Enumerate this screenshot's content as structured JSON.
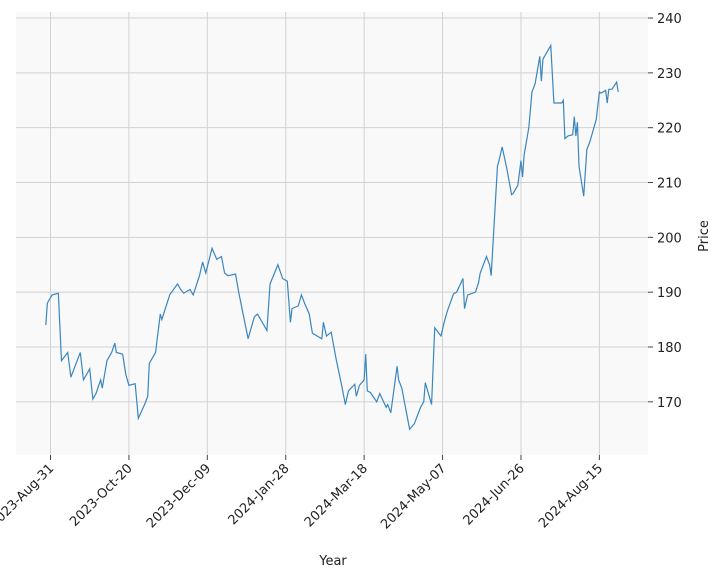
{
  "chart_data": {
    "type": "line",
    "xlabel": "Year",
    "ylabel": "Price",
    "x": [
      "2023-08-28",
      "2023-08-29",
      "2023-09-01",
      "2023-09-05",
      "2023-09-07",
      "2023-09-11",
      "2023-09-13",
      "2023-09-15",
      "2023-09-19",
      "2023-09-21",
      "2023-09-25",
      "2023-09-27",
      "2023-09-29",
      "2023-10-02",
      "2023-10-03",
      "2023-10-06",
      "2023-10-09",
      "2023-10-11",
      "2023-10-12",
      "2023-10-16",
      "2023-10-18",
      "2023-10-20",
      "2023-10-24",
      "2023-10-26",
      "2023-10-30",
      "2023-11-01",
      "2023-11-02",
      "2023-11-06",
      "2023-11-09",
      "2023-11-10",
      "2023-11-15",
      "2023-11-20",
      "2023-11-22",
      "2023-11-24",
      "2023-11-28",
      "2023-11-30",
      "2023-12-04",
      "2023-12-06",
      "2023-12-08",
      "2023-12-12",
      "2023-12-15",
      "2023-12-18",
      "2023-12-20",
      "2023-12-22",
      "2023-12-27",
      "2023-12-29",
      "2024-01-04",
      "2024-01-08",
      "2024-01-10",
      "2024-01-12",
      "2024-01-16",
      "2024-01-18",
      "2024-01-23",
      "2024-01-26",
      "2024-01-29",
      "2024-01-31",
      "2024-02-01",
      "2024-02-05",
      "2024-02-07",
      "2024-02-09",
      "2024-02-12",
      "2024-02-14",
      "2024-02-20",
      "2024-02-21",
      "2024-02-23",
      "2024-02-26",
      "2024-02-29",
      "2024-03-04",
      "2024-03-06",
      "2024-03-08",
      "2024-03-12",
      "2024-03-13",
      "2024-03-15",
      "2024-03-18",
      "2024-03-19",
      "2024-03-20",
      "2024-03-22",
      "2024-03-26",
      "2024-03-28",
      "2024-04-01",
      "2024-04-02",
      "2024-04-04",
      "2024-04-08",
      "2024-04-09",
      "2024-04-11",
      "2024-04-16",
      "2024-04-19",
      "2024-04-23",
      "2024-04-25",
      "2024-04-26",
      "2024-04-30",
      "2024-05-02",
      "2024-05-06",
      "2024-05-08",
      "2024-05-10",
      "2024-05-14",
      "2024-05-16",
      "2024-05-20",
      "2024-05-21",
      "2024-05-23",
      "2024-05-28",
      "2024-05-30",
      "2024-05-31",
      "2024-06-04",
      "2024-06-06",
      "2024-06-07",
      "2024-06-11",
      "2024-06-12",
      "2024-06-14",
      "2024-06-17",
      "2024-06-20",
      "2024-06-21",
      "2024-06-24",
      "2024-06-26",
      "2024-06-27",
      "2024-06-28",
      "2024-07-01",
      "2024-07-03",
      "2024-07-05",
      "2024-07-08",
      "2024-07-09",
      "2024-07-10",
      "2024-07-15",
      "2024-07-17",
      "2024-07-22",
      "2024-07-23",
      "2024-07-24",
      "2024-07-26",
      "2024-07-29",
      "2024-07-30",
      "2024-07-31",
      "2024-08-01",
      "2024-08-02",
      "2024-08-05",
      "2024-08-07",
      "2024-08-09",
      "2024-08-13",
      "2024-08-15",
      "2024-08-16",
      "2024-08-19",
      "2024-08-20",
      "2024-08-21",
      "2024-08-23",
      "2024-08-26",
      "2024-08-27"
    ],
    "values": [
      184,
      188,
      189.5,
      189.8,
      177.5,
      179,
      174.5,
      176,
      179,
      174,
      176,
      170.5,
      171.5,
      174,
      172.5,
      177.5,
      179,
      180.7,
      179,
      178.7,
      175,
      173,
      173.3,
      167,
      169.5,
      171,
      177,
      179,
      186,
      185,
      189.5,
      191.5,
      190.5,
      189.8,
      190.5,
      189.5,
      193,
      195.5,
      193.5,
      198,
      196,
      196.5,
      193.5,
      193,
      193.3,
      190,
      181.5,
      185.5,
      186,
      185,
      183,
      191.5,
      195,
      192.5,
      192,
      184.5,
      187,
      187.5,
      189.5,
      188,
      186,
      182.5,
      181.5,
      184.5,
      182,
      182.7,
      178,
      172.5,
      169.5,
      172,
      173.2,
      171,
      173,
      174,
      178.7,
      172,
      171.7,
      170,
      171.5,
      169,
      169.5,
      168,
      176.5,
      174,
      172.5,
      165,
      166,
      169,
      170,
      173.5,
      169.5,
      183.5,
      182,
      184.5,
      186.5,
      189.7,
      190,
      192.5,
      187,
      189.5,
      190,
      191.8,
      193.5,
      196.5,
      195,
      193,
      213,
      214,
      216.5,
      212.5,
      207.8,
      208,
      209.5,
      214,
      211,
      215,
      220,
      226.5,
      228,
      233,
      228.5,
      232.5,
      235,
      224.5,
      224.5,
      225,
      218,
      218.5,
      218.7,
      222,
      218.5,
      221,
      213,
      207.5,
      216,
      217.5,
      221.5,
      226.5,
      226.3,
      226.8,
      224.5,
      227,
      227,
      228.3,
      226.5
    ],
    "color": "#3a86bf",
    "xlim": [
      "2023-08-09",
      "2024-09-15"
    ],
    "xticks": [
      {
        "value": "2023-08-31",
        "label": "2023-Aug-31"
      },
      {
        "value": "2023-10-20",
        "label": "2023-Oct-20"
      },
      {
        "value": "2023-12-09",
        "label": "2023-Dec-09"
      },
      {
        "value": "2024-01-28",
        "label": "2024-Jan-28"
      },
      {
        "value": "2024-03-18",
        "label": "2024-Mar-18"
      },
      {
        "value": "2024-05-07",
        "label": "2024-May-07"
      },
      {
        "value": "2024-06-26",
        "label": "2024-Jun-26"
      },
      {
        "value": "2024-08-15",
        "label": "2024-Aug-15"
      }
    ],
    "ylim": [
      160.3,
      241.1
    ],
    "yticks": [
      170,
      180,
      190,
      200,
      210,
      220,
      230,
      240
    ],
    "grid": true
  }
}
